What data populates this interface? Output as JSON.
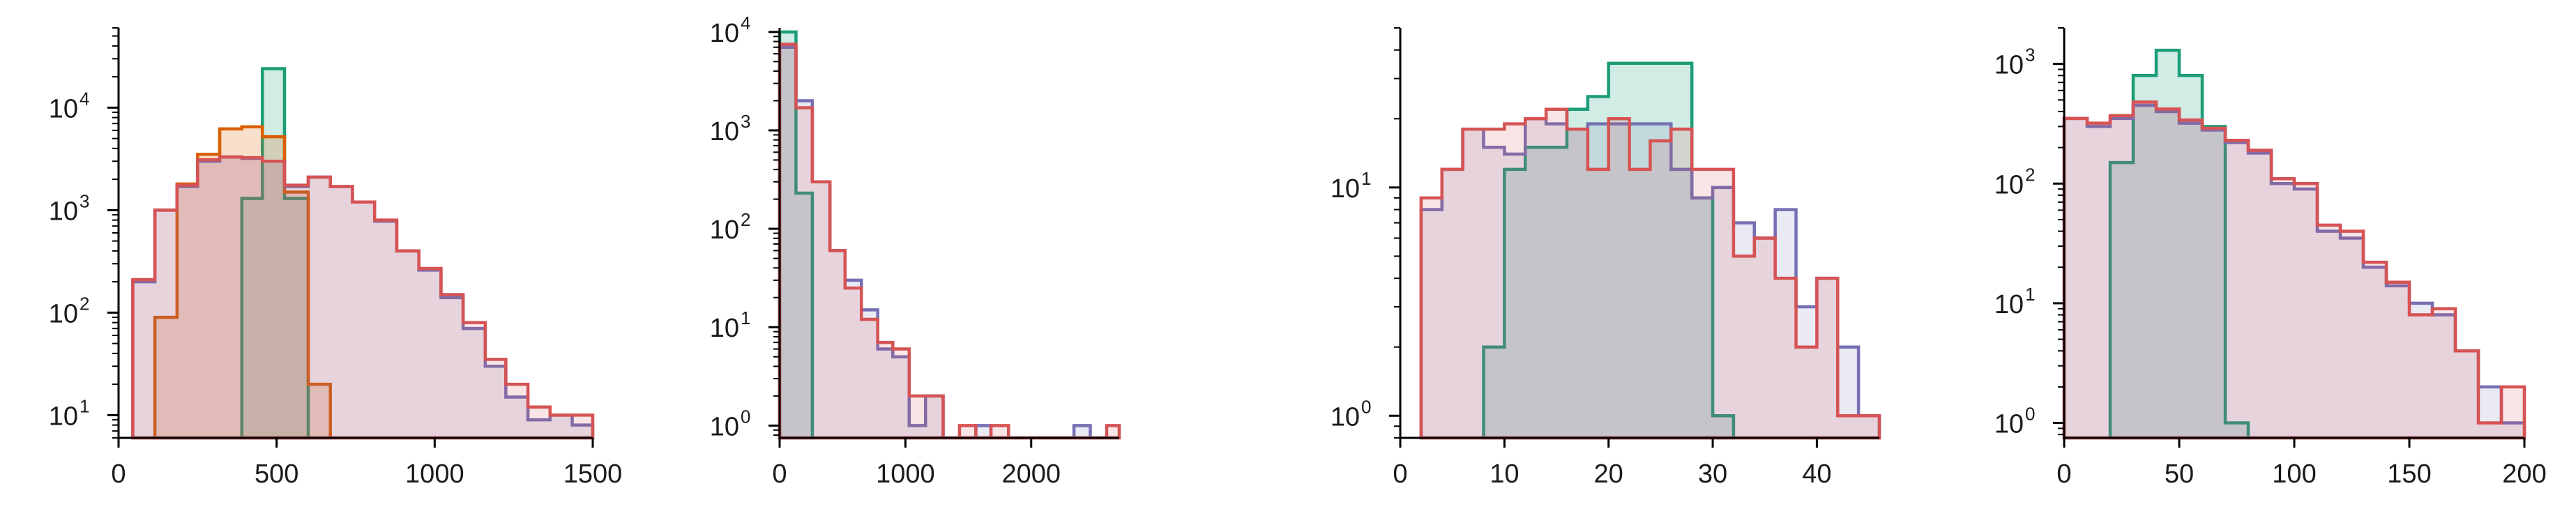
{
  "colors": {
    "green": "#1b9e77",
    "orange": "#d95f02",
    "purple": "#7570b3",
    "red": "#d65354",
    "axis": "#000000"
  },
  "chart_data": [
    {
      "type": "histogram",
      "y_scale": "log",
      "xlim": [
        0,
        1500
      ],
      "ylim": [
        6,
        60000
      ],
      "xticks": [
        0,
        500,
        1000,
        1500
      ],
      "yticks": [
        {
          "value": 10,
          "base": "10",
          "exp": "1"
        },
        {
          "value": 100,
          "base": "10",
          "exp": "2"
        },
        {
          "value": 1000,
          "base": "10",
          "exp": "3"
        },
        {
          "value": 10000,
          "base": "10",
          "exp": "4"
        }
      ],
      "series": [
        {
          "color": "green",
          "fill_opacity": 0.2,
          "bin_edges": [
            390,
            455,
            525,
            600
          ],
          "values": [
            1300,
            24000,
            1300
          ]
        },
        {
          "color": "orange",
          "fill_opacity": 0.2,
          "bin_edges": [
            115,
            185,
            250,
            320,
            390,
            455,
            525,
            600,
            670
          ],
          "values": [
            90,
            1800,
            3500,
            6200,
            6500,
            5200,
            1500,
            20
          ]
        },
        {
          "color": "purple",
          "fill_opacity": 0.15,
          "bin_edges": [
            45,
            115,
            185,
            250,
            320,
            390,
            455,
            525,
            600,
            670,
            740,
            810,
            880,
            950,
            1020,
            1090,
            1160,
            1225,
            1295,
            1365,
            1435,
            1500
          ],
          "values": [
            200,
            1000,
            1700,
            3000,
            3300,
            3200,
            3000,
            1700,
            2100,
            1700,
            1200,
            780,
            400,
            260,
            140,
            70,
            30,
            15,
            9,
            10,
            8
          ]
        },
        {
          "color": "red",
          "fill_opacity": 0.15,
          "bin_edges": [
            45,
            115,
            185,
            250,
            320,
            390,
            455,
            525,
            600,
            670,
            740,
            810,
            880,
            950,
            1020,
            1090,
            1160,
            1225,
            1295,
            1365,
            1435,
            1500
          ],
          "values": [
            210,
            1000,
            1750,
            3100,
            3300,
            3250,
            3000,
            1750,
            2100,
            1700,
            1200,
            800,
            400,
            270,
            150,
            80,
            35,
            20,
            12,
            10,
            10
          ]
        }
      ]
    },
    {
      "type": "histogram",
      "y_scale": "log",
      "xlim": [
        0,
        2700
      ],
      "ylim": [
        0.75,
        11000
      ],
      "xticks": [
        0,
        1000,
        2000
      ],
      "yticks": [
        {
          "value": 1,
          "base": "10",
          "exp": "0"
        },
        {
          "value": 10,
          "base": "10",
          "exp": "1"
        },
        {
          "value": 100,
          "base": "10",
          "exp": "2"
        },
        {
          "value": 1000,
          "base": "10",
          "exp": "3"
        },
        {
          "value": 10000,
          "base": "10",
          "exp": "4"
        }
      ],
      "series": [
        {
          "color": "green",
          "fill_opacity": 0.2,
          "bin_edges": [
            0,
            130,
            260
          ],
          "values": [
            10000,
            230
          ]
        },
        {
          "color": "purple",
          "fill_opacity": 0.15,
          "bin_edges": [
            0,
            130,
            260,
            400,
            520,
            650,
            780,
            900,
            1030,
            1160,
            1300,
            1430,
            1560,
            1680,
            1820,
            1950,
            2080,
            2210,
            2340,
            2470,
            2600,
            2700
          ],
          "values": [
            7000,
            2000,
            300,
            60,
            30,
            15,
            6,
            5,
            1,
            2,
            0,
            0,
            1,
            0,
            0,
            0,
            0,
            0,
            1,
            0,
            0
          ]
        },
        {
          "color": "red",
          "fill_opacity": 0.15,
          "bin_edges": [
            0,
            130,
            260,
            400,
            520,
            650,
            780,
            900,
            1030,
            1160,
            1300,
            1430,
            1560,
            1680,
            1820,
            1950,
            2080,
            2210,
            2340,
            2470,
            2600,
            2700
          ],
          "values": [
            7500,
            1700,
            300,
            60,
            25,
            12,
            7,
            6,
            2,
            2,
            0,
            1,
            0,
            1,
            0,
            0,
            0,
            0,
            0,
            0,
            1
          ]
        }
      ]
    },
    {
      "type": "histogram",
      "y_scale": "log",
      "xlim": [
        0,
        46
      ],
      "ylim": [
        0.8,
        50
      ],
      "xticks": [
        0,
        10,
        20,
        30,
        40
      ],
      "yticks": [
        {
          "value": 1,
          "base": "10",
          "exp": "0"
        },
        {
          "value": 10,
          "base": "10",
          "exp": "1"
        }
      ],
      "series": [
        {
          "color": "green",
          "fill_opacity": 0.2,
          "bin_edges": [
            8,
            10,
            12,
            14,
            16,
            18,
            20,
            22,
            24,
            26,
            28,
            30,
            32
          ],
          "values": [
            2,
            12,
            15,
            15,
            22,
            25,
            35,
            35,
            35,
            35,
            9,
            1
          ]
        },
        {
          "color": "purple",
          "fill_opacity": 0.15,
          "bin_edges": [
            2,
            4,
            6,
            8,
            10,
            12,
            14,
            16,
            18,
            20,
            22,
            24,
            26,
            28,
            30,
            32,
            34,
            36,
            38,
            40,
            42,
            44,
            46
          ],
          "values": [
            8,
            12,
            18,
            15,
            14,
            20,
            19,
            18,
            19,
            19,
            19,
            19,
            12,
            9,
            10,
            7,
            6,
            8,
            3,
            4,
            2,
            1
          ]
        },
        {
          "color": "red",
          "fill_opacity": 0.15,
          "bin_edges": [
            2,
            4,
            6,
            8,
            10,
            12,
            14,
            16,
            18,
            20,
            22,
            24,
            26,
            28,
            30,
            32,
            34,
            36,
            38,
            40,
            42,
            44,
            46
          ],
          "values": [
            9,
            12,
            18,
            18,
            19,
            20,
            22,
            18,
            12,
            20,
            12,
            16,
            18,
            12,
            12,
            5,
            6,
            4,
            2,
            4,
            1,
            1
          ]
        }
      ]
    },
    {
      "type": "histogram",
      "y_scale": "log",
      "xlim": [
        0,
        200
      ],
      "ylim": [
        0.75,
        2000
      ],
      "xticks": [
        0,
        50,
        100,
        150,
        200
      ],
      "yticks": [
        {
          "value": 1,
          "base": "10",
          "exp": "0"
        },
        {
          "value": 10,
          "base": "10",
          "exp": "1"
        },
        {
          "value": 100,
          "base": "10",
          "exp": "2"
        },
        {
          "value": 1000,
          "base": "10",
          "exp": "3"
        }
      ],
      "series": [
        {
          "color": "green",
          "fill_opacity": 0.2,
          "bin_edges": [
            20,
            30,
            40,
            50,
            60,
            70,
            80
          ],
          "values": [
            150,
            800,
            1300,
            800,
            300,
            1
          ]
        },
        {
          "color": "purple",
          "fill_opacity": 0.15,
          "bin_edges": [
            0,
            10,
            20,
            30,
            40,
            50,
            60,
            70,
            80,
            90,
            100,
            110,
            120,
            130,
            140,
            150,
            160,
            170,
            180,
            190,
            200
          ],
          "values": [
            350,
            300,
            350,
            450,
            400,
            320,
            280,
            220,
            180,
            100,
            90,
            40,
            35,
            20,
            14,
            10,
            8,
            4,
            2,
            1
          ]
        },
        {
          "color": "red",
          "fill_opacity": 0.15,
          "bin_edges": [
            0,
            10,
            20,
            30,
            40,
            50,
            60,
            70,
            80,
            90,
            100,
            110,
            120,
            130,
            140,
            150,
            160,
            170,
            180,
            190,
            200
          ],
          "values": [
            350,
            320,
            370,
            480,
            420,
            340,
            290,
            230,
            190,
            110,
            100,
            45,
            40,
            22,
            15,
            8,
            9,
            4,
            1,
            2
          ]
        }
      ]
    }
  ]
}
